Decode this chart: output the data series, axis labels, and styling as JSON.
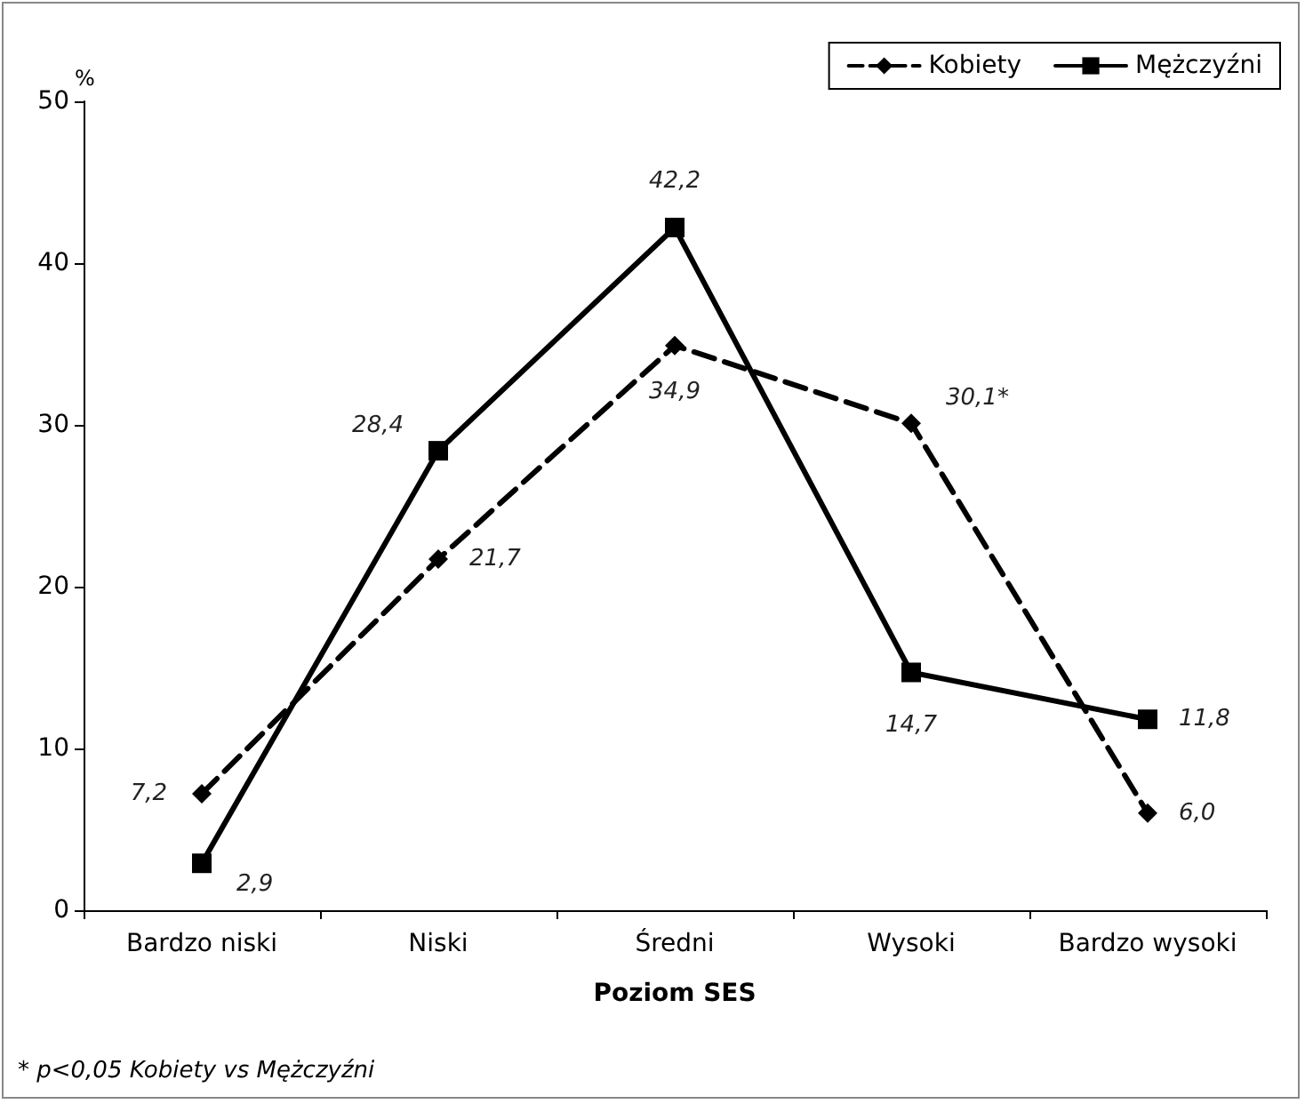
{
  "chart_data": {
    "type": "line",
    "ylabel": "%",
    "xlabel": "Poziom SES",
    "categories": [
      "Bardzo niski",
      "Niski",
      "Średni",
      "Wysoki",
      "Bardzo wysoki"
    ],
    "series": [
      {
        "name": "Kobiety",
        "color": "#000000",
        "values": [
          7.2,
          21.7,
          34.9,
          30.1,
          6.0
        ],
        "value_labels": [
          "7,2",
          "21,7",
          "34,9",
          "30,1*",
          "6,0"
        ],
        "line_style": "dashed",
        "marker": "diamond"
      },
      {
        "name": "Mężczyźni",
        "color": "#000000",
        "values": [
          2.9,
          28.4,
          42.2,
          14.7,
          11.8
        ],
        "value_labels": [
          "2,9",
          "28,4",
          "42,2",
          "14,7",
          "11,8"
        ],
        "line_style": "solid",
        "marker": "square"
      }
    ],
    "ylim": [
      0,
      50
    ],
    "yticks": [
      0,
      10,
      20,
      30,
      40,
      50
    ],
    "grid": false,
    "legend": "top right",
    "annotations": [
      "* p<0,05 Kobiety vs Mężczyźni"
    ]
  }
}
